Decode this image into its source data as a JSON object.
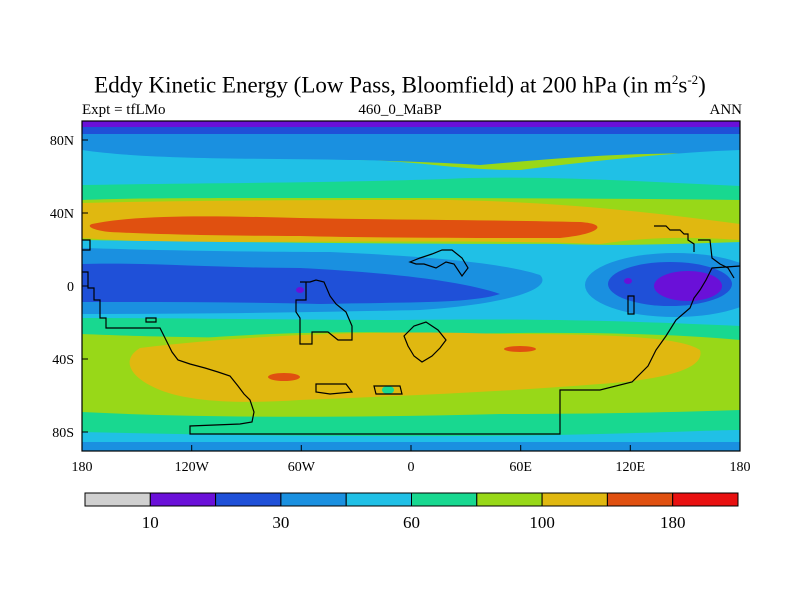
{
  "title": {
    "main": "Eddy Kinetic Energy (Low Pass, Bloomfield) at 200 hPa (in m",
    "sup1": "2",
    "s": "s",
    "sup2": "-2",
    "close": ")"
  },
  "subtitle": {
    "left": "Expt = tfLMo",
    "center": "460_0_MaBP",
    "right": "ANN"
  },
  "map": {
    "lon_ticks": [
      "180",
      "120W",
      "60W",
      "0",
      "60E",
      "120E",
      "180"
    ],
    "lat_ticks": [
      "80N",
      "40N",
      "0",
      "40S",
      "80S"
    ]
  },
  "colorbar": {
    "colors": [
      "#d0d0d0",
      "#6a10d8",
      "#1f50d8",
      "#1a90e0",
      "#20c0e6",
      "#18d890",
      "#98d818",
      "#e0b810",
      "#e05010",
      "#e81010"
    ],
    "labels": [
      "10",
      "30",
      "60",
      "100",
      "180"
    ]
  }
}
